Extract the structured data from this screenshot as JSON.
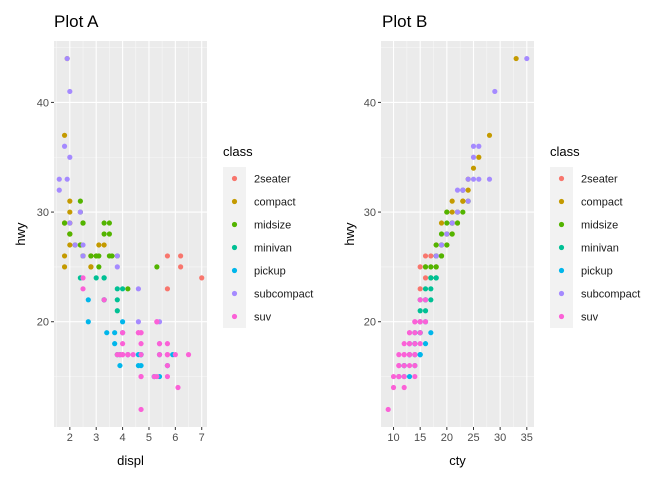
{
  "chart_data": [
    {
      "id": "plotA",
      "type": "scatter",
      "title": "Plot A",
      "xlabel": "displ",
      "ylabel": "hwy",
      "xlim": [
        1.4,
        7.2
      ],
      "ylim": [
        10.4,
        45.6
      ],
      "xticks": [
        2,
        3,
        4,
        5,
        6,
        7
      ],
      "yticks": [
        20,
        30,
        40
      ],
      "grid": true,
      "legend": {
        "title": "class",
        "placement": "right",
        "entries": [
          {
            "label": "2seater",
            "color": "#F8766D"
          },
          {
            "label": "compact",
            "color": "#C49A00"
          },
          {
            "label": "midsize",
            "color": "#53B400"
          },
          {
            "label": "minivan",
            "color": "#00C094"
          },
          {
            "label": "pickup",
            "color": "#00B6EB"
          },
          {
            "label": "subcompact",
            "color": "#A58AFF"
          },
          {
            "label": "suv",
            "color": "#FB61D7"
          }
        ]
      },
      "series": [
        {
          "name": "2seater",
          "x": [
            5.7,
            5.7,
            6.2,
            6.2,
            7.0
          ],
          "y": [
            26,
            23,
            26,
            25,
            24
          ]
        },
        {
          "name": "compact",
          "x": [
            1.8,
            1.8,
            2.0,
            2.0,
            2.8,
            2.8,
            3.1,
            1.8,
            1.8,
            2.0,
            2.0,
            2.0,
            2.0,
            2.8,
            2.8,
            1.9,
            2.0,
            2.5,
            1.8,
            2.2,
            2.5,
            2.4,
            3.0,
            3.3
          ],
          "y": [
            29,
            29,
            31,
            30,
            26,
            26,
            27,
            26,
            25,
            28,
            27,
            29,
            28,
            25,
            25,
            44,
            29,
            29,
            37,
            27,
            26,
            27,
            26,
            27
          ]
        },
        {
          "name": "midsize",
          "x": [
            2.8,
            3.1,
            4.2,
            2.4,
            2.4,
            3.1,
            3.5,
            3.6,
            2.5,
            2.5,
            3.3,
            3.3,
            3.8,
            5.3,
            2.2,
            2.5,
            2.4,
            3.0,
            3.5,
            2.5,
            3.5,
            1.8,
            2.0
          ],
          "y": [
            26,
            25,
            23,
            27,
            30,
            26,
            29,
            26,
            29,
            26,
            28,
            29,
            26,
            25,
            27,
            29,
            31,
            26,
            26,
            26,
            28,
            29,
            28
          ]
        },
        {
          "name": "minivan",
          "x": [
            2.4,
            3.0,
            3.3,
            3.3,
            3.3,
            3.3,
            3.8,
            3.8,
            3.8,
            4.0,
            3.8
          ],
          "y": [
            24,
            24,
            22,
            22,
            24,
            24,
            17,
            22,
            21,
            23,
            23
          ]
        },
        {
          "name": "pickup",
          "x": [
            3.7,
            3.7,
            3.9,
            3.9,
            4.7,
            4.7,
            5.2,
            5.2,
            5.7,
            5.9,
            4.2,
            4.6,
            4.6,
            5.4,
            5.4,
            2.7,
            2.7,
            3.4,
            4.0,
            4.7,
            4.0
          ],
          "y": [
            19,
            18,
            17,
            16,
            16,
            17,
            15,
            15,
            16,
            17,
            17,
            17,
            16,
            17,
            15,
            20,
            22,
            19,
            20,
            17,
            19
          ]
        },
        {
          "name": "subcompact",
          "x": [
            3.8,
            4.6,
            5.4,
            1.6,
            1.6,
            1.8,
            2.0,
            2.0,
            2.4,
            2.5,
            2.2,
            2.5,
            3.8,
            4.6,
            5.4,
            1.9,
            2.0,
            1.9
          ],
          "y": [
            26,
            23,
            20,
            33,
            32,
            36,
            35,
            41,
            30,
            27,
            27,
            26,
            25,
            20,
            18,
            44,
            29,
            33
          ]
        },
        {
          "name": "suv",
          "x": [
            5.3,
            5.3,
            5.3,
            5.7,
            6.0,
            5.7,
            5.7,
            6.1,
            5.7,
            6.5,
            3.9,
            4.7,
            4.7,
            4.7,
            5.2,
            5.7,
            4.0,
            4.6,
            5.4,
            4.0,
            4.2,
            4.4,
            4.6,
            5.4,
            4.7,
            2.5,
            3.3,
            4.7,
            4.0,
            4.7,
            4.0,
            3.8,
            4.0,
            2.5,
            4.2,
            4.7
          ],
          "y": [
            20,
            15,
            20,
            17,
            17,
            17,
            18,
            14,
            15,
            17,
            17,
            12,
            17,
            15,
            15,
            16,
            17,
            19,
            18,
            17,
            17,
            17,
            19,
            17,
            19,
            23,
            22,
            19,
            19,
            18,
            18,
            17,
            19,
            24,
            17,
            15
          ]
        }
      ]
    },
    {
      "id": "plotB",
      "type": "scatter",
      "title": "Plot B",
      "xlabel": "cty",
      "ylabel": "hwy",
      "xlim": [
        7.65,
        36.35
      ],
      "ylim": [
        10.4,
        45.6
      ],
      "xticks": [
        10,
        15,
        20,
        25,
        30,
        35
      ],
      "yticks": [
        20,
        30,
        40
      ],
      "grid": true,
      "legend": {
        "title": "class",
        "placement": "right",
        "entries": [
          {
            "label": "2seater",
            "color": "#F8766D"
          },
          {
            "label": "compact",
            "color": "#C49A00"
          },
          {
            "label": "midsize",
            "color": "#53B400"
          },
          {
            "label": "minivan",
            "color": "#00C094"
          },
          {
            "label": "pickup",
            "color": "#00B6EB"
          },
          {
            "label": "subcompact",
            "color": "#A58AFF"
          },
          {
            "label": "suv",
            "color": "#FB61D7"
          }
        ]
      },
      "series": [
        {
          "name": "2seater",
          "x": [
            15,
            16,
            15,
            16,
            17
          ],
          "y": [
            23,
            24,
            25,
            26,
            26
          ]
        },
        {
          "name": "compact",
          "x": [
            18,
            19,
            20,
            21,
            21,
            22,
            23,
            24,
            21,
            19,
            20,
            21,
            18,
            16,
            33,
            28,
            24,
            25,
            22,
            19,
            18,
            26,
            23,
            20
          ],
          "y": [
            26,
            27,
            27,
            28,
            29,
            29,
            31,
            33,
            31,
            29,
            30,
            30,
            27,
            25,
            44,
            37,
            32,
            34,
            30,
            26,
            25,
            35,
            31,
            28
          ]
        },
        {
          "name": "midsize",
          "x": [
            18,
            19,
            20,
            21,
            22,
            23,
            24,
            17,
            18,
            19,
            20,
            21,
            22,
            17,
            16,
            18,
            19,
            20,
            19,
            18,
            21,
            23,
            20
          ],
          "y": [
            25,
            26,
            27,
            28,
            29,
            30,
            31,
            25,
            26,
            27,
            28,
            29,
            30,
            24,
            25,
            27,
            28,
            29,
            26,
            26,
            29,
            32,
            30
          ]
        },
        {
          "name": "minivan",
          "x": [
            15,
            16,
            17,
            18,
            16,
            17,
            15,
            16,
            17,
            18,
            15
          ],
          "y": [
            19,
            21,
            22,
            24,
            22,
            23,
            21,
            23,
            24,
            24,
            22
          ]
        },
        {
          "name": "pickup",
          "x": [
            14,
            15,
            16,
            13,
            14,
            15,
            12,
            13,
            14,
            11,
            12,
            15,
            16,
            17,
            13,
            14,
            15,
            16,
            13,
            14,
            12
          ],
          "y": [
            19,
            20,
            22,
            17,
            18,
            19,
            16,
            17,
            18,
            15,
            16,
            17,
            18,
            19,
            15,
            16,
            17,
            20,
            18,
            17,
            15
          ]
        },
        {
          "name": "subcompact",
          "x": [
            35,
            29,
            28,
            25,
            26,
            24,
            25,
            23,
            26,
            22,
            21,
            20,
            24,
            25,
            22,
            23,
            18,
            19
          ],
          "y": [
            44,
            41,
            33,
            36,
            36,
            33,
            35,
            32,
            33,
            32,
            29,
            28,
            31,
            33,
            30,
            32,
            26,
            27
          ]
        },
        {
          "name": "suv",
          "x": [
            9,
            11,
            11,
            11,
            12,
            12,
            12,
            13,
            13,
            13,
            14,
            14,
            14,
            15,
            15,
            15,
            10,
            10,
            11,
            12,
            12,
            13,
            13,
            14,
            14,
            14,
            14,
            15,
            15,
            16,
            16,
            11,
            12,
            13,
            13,
            14
          ],
          "y": [
            12,
            15,
            16,
            17,
            17,
            16,
            18,
            17,
            18,
            19,
            17,
            19,
            20,
            19,
            20,
            22,
            14,
            15,
            15,
            15,
            14,
            16,
            17,
            18,
            17,
            16,
            15,
            18,
            20,
            22,
            20,
            16,
            17,
            19,
            18,
            20
          ]
        }
      ]
    }
  ]
}
